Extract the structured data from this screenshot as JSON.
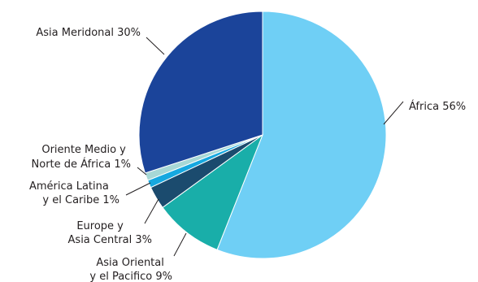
{
  "chart_data": {
    "type": "pie",
    "title": "",
    "slices": [
      {
        "label": "África 56%",
        "value": 56,
        "color": "#6fcff5"
      },
      {
        "label": "Asia Oriental y el Pacifico 9%",
        "value": 9,
        "color": "#19aea9"
      },
      {
        "label": "Europe y Asia Central 3%",
        "value": 3,
        "color": "#1b4b6e"
      },
      {
        "label": "América Latina y el Caribe 1%",
        "value": 1,
        "color": "#16a8e0"
      },
      {
        "label": "Oriente Medio y Norte de África 1%",
        "value": 1,
        "color": "#a7d8d6"
      },
      {
        "label": "Asia Meridonal 30%",
        "value": 30,
        "color": "#1b449a"
      }
    ],
    "label_lines": {
      "africa": [
        "África 56%"
      ],
      "east_asia": [
        "Asia Oriental",
        "y el Pacifico 9%"
      ],
      "europe": [
        "Europe y",
        "Asia Central 3%"
      ],
      "latam": [
        "América Latina",
        "y el Caribe 1%"
      ],
      "mena": [
        "Oriente Medio y",
        "Norte de África 1%"
      ],
      "south_asia": [
        "Asia Meridonal 30%"
      ]
    }
  }
}
